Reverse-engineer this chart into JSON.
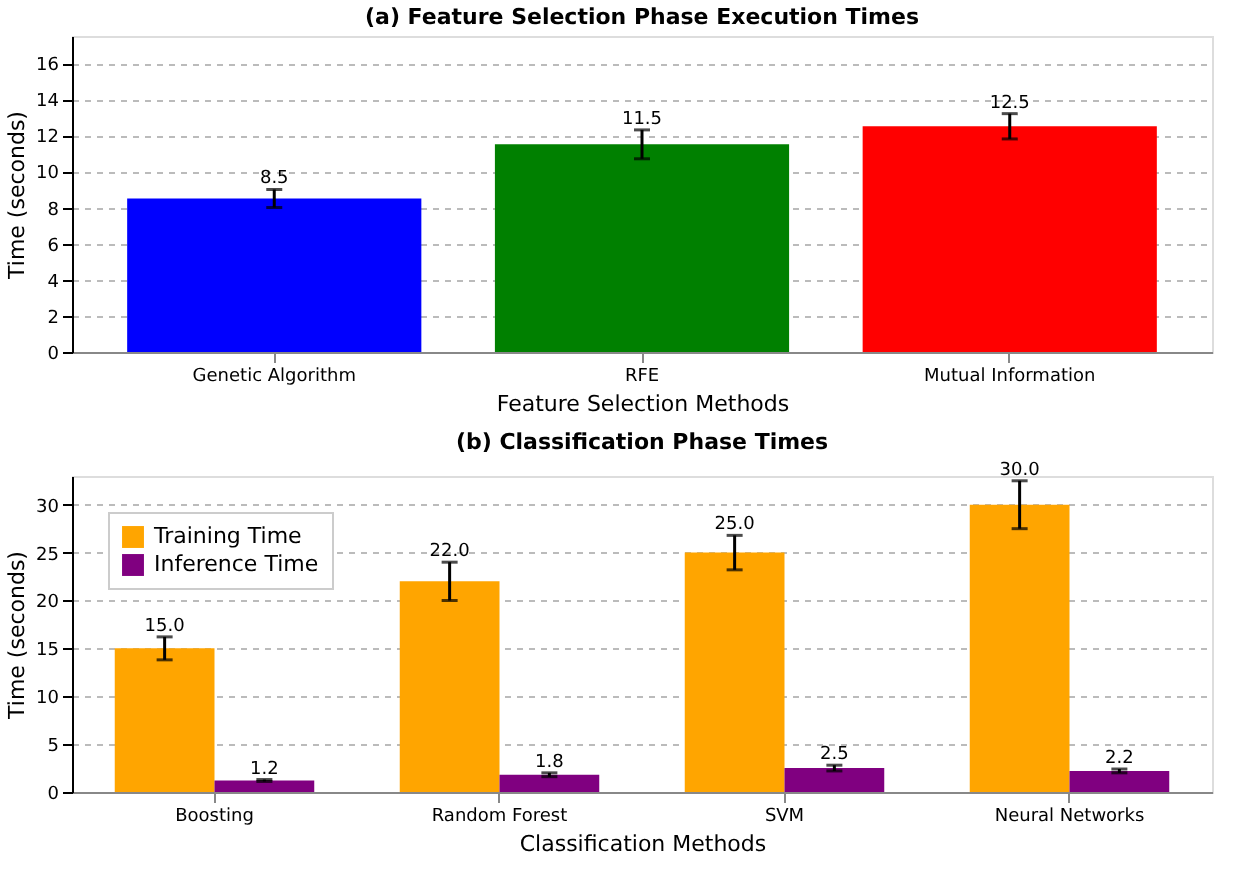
{
  "chart_data": [
    {
      "type": "bar",
      "title": "(a) Feature Selection Phase Execution Times",
      "xlabel": "Feature Selection Methods",
      "ylabel": "Time (seconds)",
      "categories": [
        "Genetic Algorithm",
        "RFE",
        "Mutual Information"
      ],
      "values": [
        8.5,
        11.5,
        12.5
      ],
      "colors": [
        "#0000ff",
        "#008000",
        "#ff0000"
      ],
      "errors": [
        0.5,
        0.8,
        0.7
      ],
      "data_labels": true,
      "ylim": [
        0,
        17.5
      ],
      "yticks": [
        0,
        2,
        4,
        6,
        8,
        10,
        12,
        14,
        16
      ],
      "grid": "y"
    },
    {
      "type": "bar",
      "title": "(b) Classification Phase Times",
      "xlabel": "Classification Methods",
      "ylabel": "Time (seconds)",
      "categories": [
        "Boosting",
        "Random Forest",
        "SVM",
        "Neural Networks"
      ],
      "series": [
        {
          "name": "Training Time",
          "color": "#ffa500",
          "values": [
            15,
            22,
            25,
            30
          ],
          "errors": [
            1.2,
            2,
            1.8,
            2.5
          ],
          "value_labels": [
            "15.0",
            "22.0",
            "25.0",
            "30.0"
          ]
        },
        {
          "name": "Inference Time",
          "color": "#800080",
          "values": [
            1.2,
            1.8,
            2.5,
            2.2
          ],
          "errors": [
            0.1,
            0.2,
            0.3,
            0.2
          ],
          "value_labels": [
            "1.2",
            "1.8",
            "2.5",
            "2.2"
          ]
        }
      ],
      "ylim": [
        0,
        33
      ],
      "yticks": [
        0,
        5,
        10,
        15,
        20,
        25,
        30
      ],
      "grid": "y",
      "legend": "top left"
    }
  ]
}
